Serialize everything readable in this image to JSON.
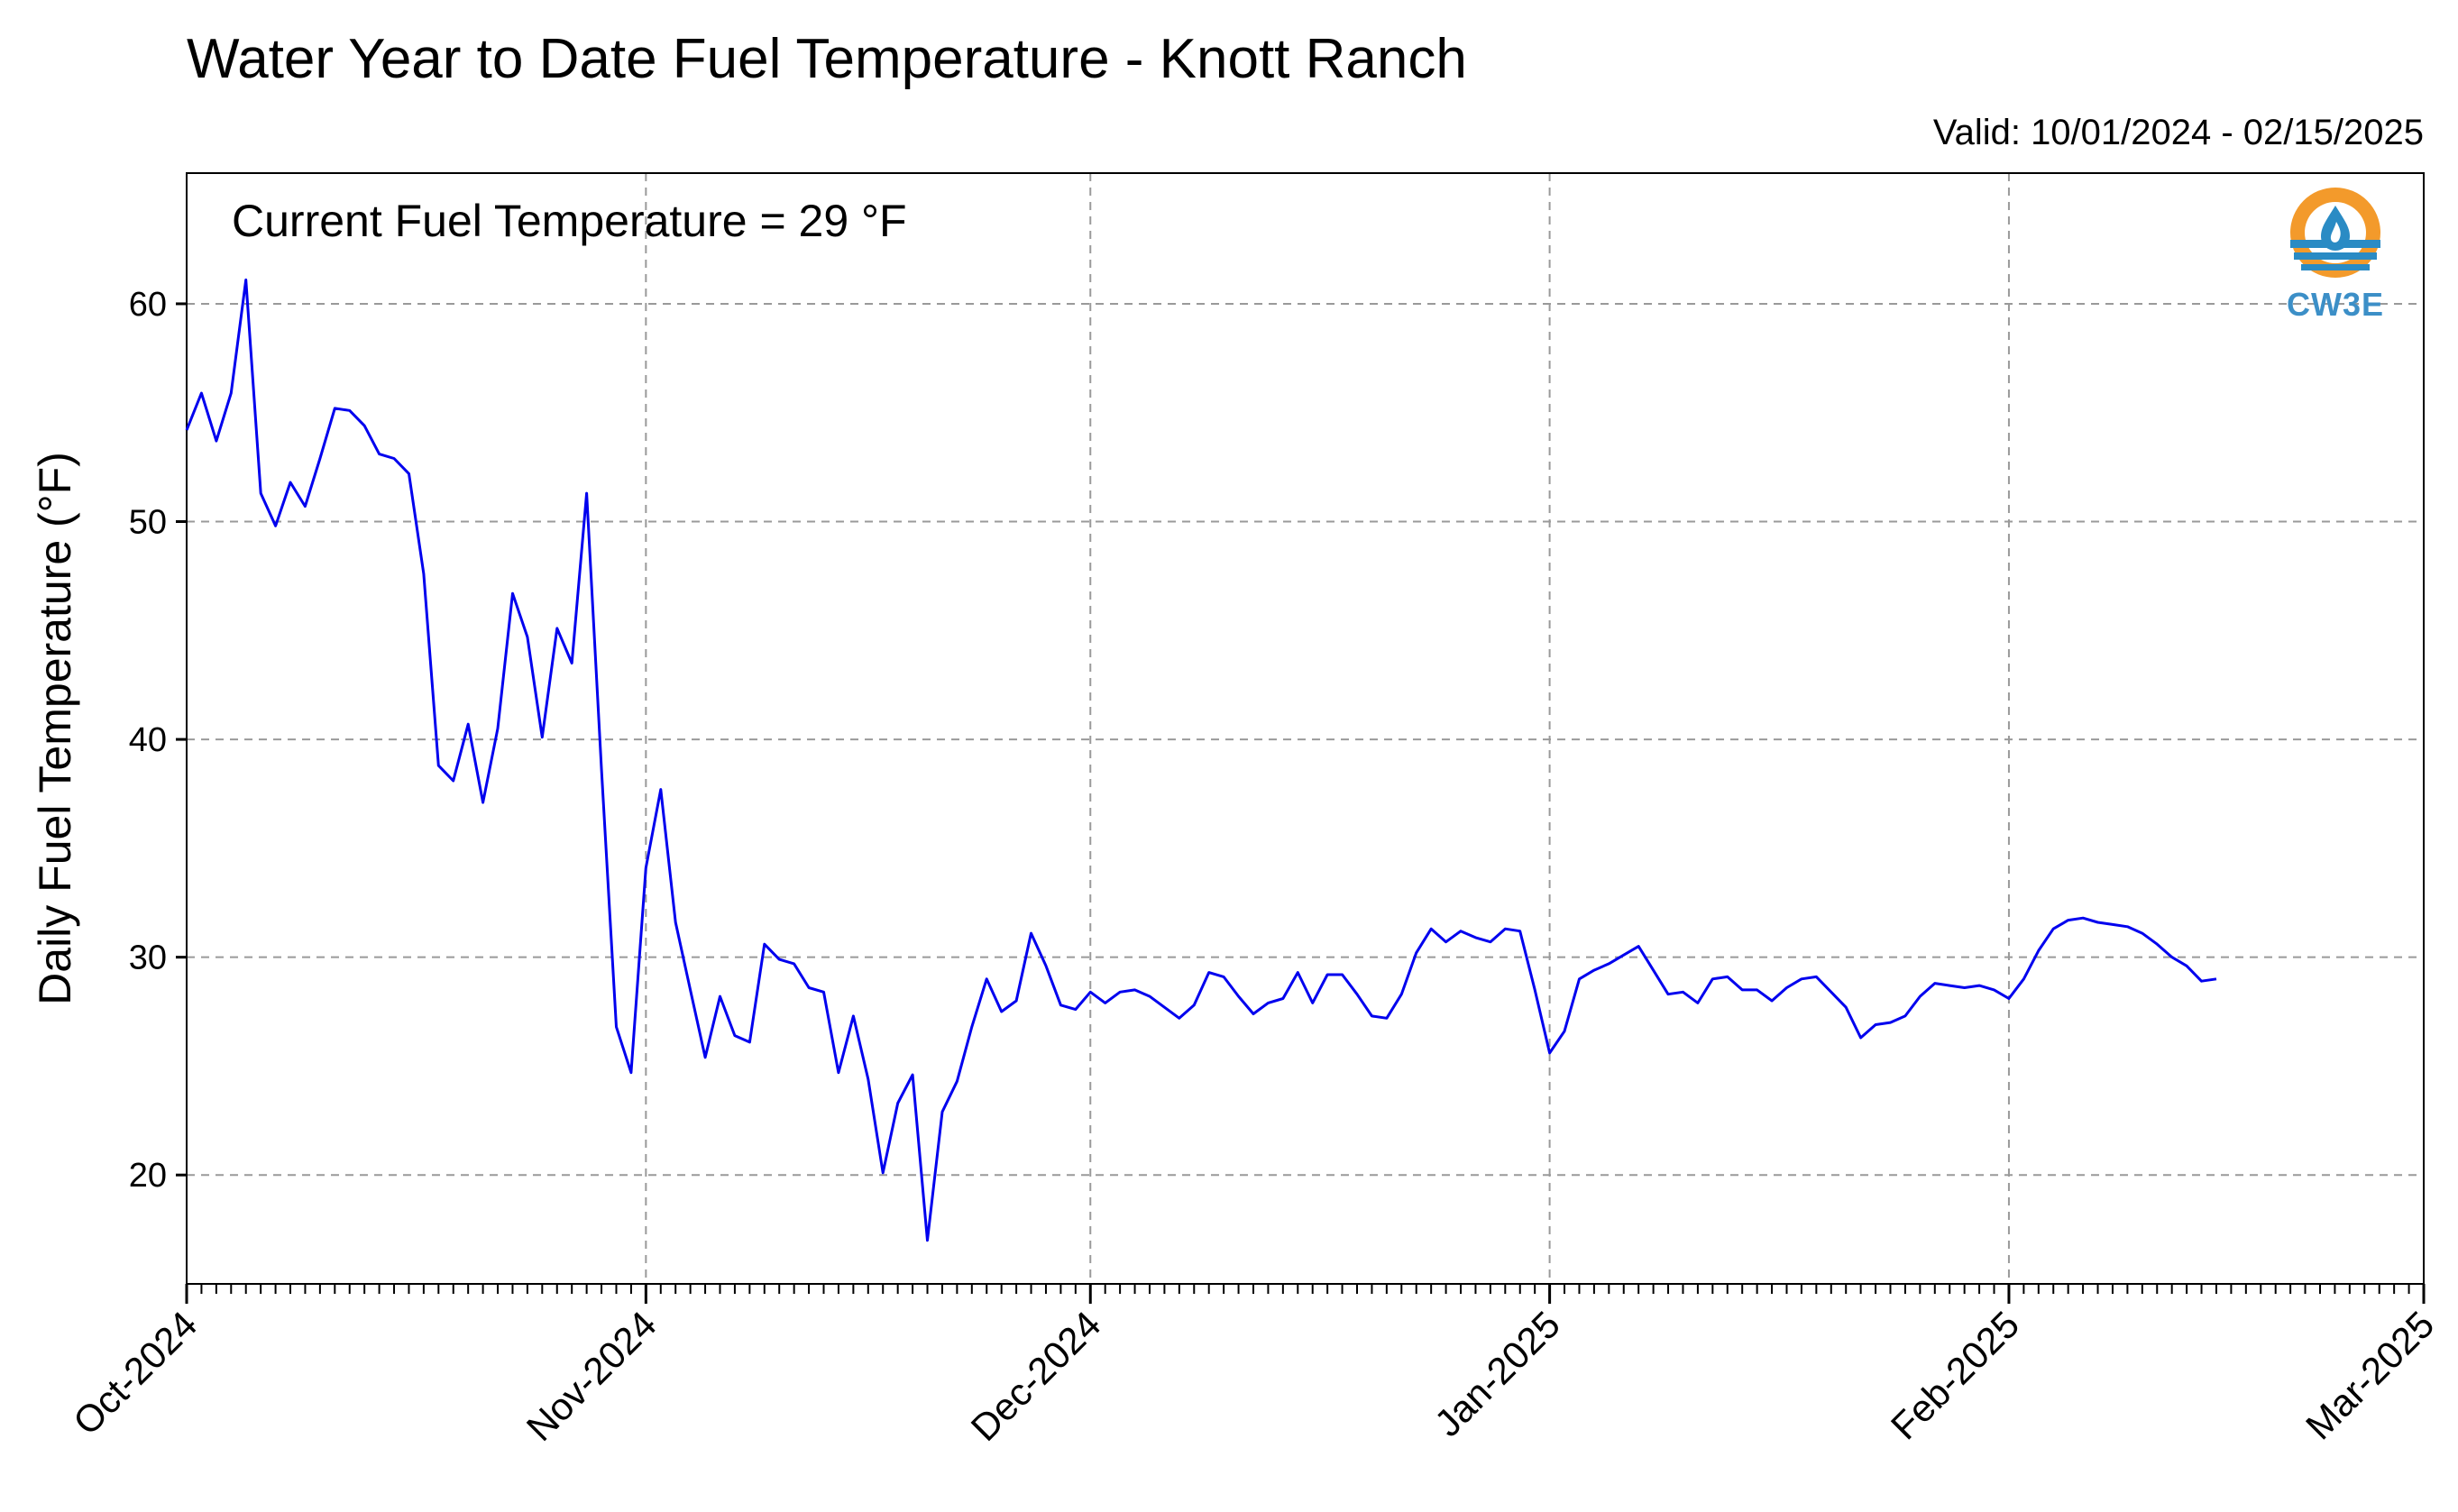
{
  "chart_data": {
    "type": "line",
    "title": "Water Year to Date Fuel Temperature - Knott Ranch",
    "subtitle": "Valid: 10/01/2024 - 02/15/2025",
    "annotation": "Current Fuel Temperature = 29 °F",
    "ylabel": "Daily Fuel Temperature (°F)",
    "xlabel": "",
    "ylim": [
      15,
      66
    ],
    "xlim": [
      "2024-10-01",
      "2025-03-01"
    ],
    "yticks": [
      20,
      30,
      40,
      50,
      60
    ],
    "xticks": [
      {
        "date": "2024-10-01",
        "label": "Oct-2024"
      },
      {
        "date": "2024-11-01",
        "label": "Nov-2024"
      },
      {
        "date": "2024-12-01",
        "label": "Dec-2024"
      },
      {
        "date": "2025-01-01",
        "label": "Jan-2025"
      },
      {
        "date": "2025-02-01",
        "label": "Feb-2025"
      },
      {
        "date": "2025-03-01",
        "label": "Mar-2025"
      }
    ],
    "grid": true,
    "line_color": "#0000ee",
    "series": [
      {
        "x": [
          "2024-10-01",
          "2024-10-02",
          "2024-10-03",
          "2024-10-04",
          "2024-10-05",
          "2024-10-06",
          "2024-10-07",
          "2024-10-08",
          "2024-10-09",
          "2024-10-10",
          "2024-10-11",
          "2024-10-12",
          "2024-10-13",
          "2024-10-14",
          "2024-10-15",
          "2024-10-16",
          "2024-10-17",
          "2024-10-18",
          "2024-10-19",
          "2024-10-20",
          "2024-10-21",
          "2024-10-22",
          "2024-10-23",
          "2024-10-24",
          "2024-10-25",
          "2024-10-26",
          "2024-10-27",
          "2024-10-28",
          "2024-10-29",
          "2024-10-30",
          "2024-10-31",
          "2024-11-01",
          "2024-11-02",
          "2024-11-03",
          "2024-11-04",
          "2024-11-05",
          "2024-11-06",
          "2024-11-07",
          "2024-11-08",
          "2024-11-09",
          "2024-11-10",
          "2024-11-11",
          "2024-11-12",
          "2024-11-13",
          "2024-11-14",
          "2024-11-15",
          "2024-11-16",
          "2024-11-17",
          "2024-11-18",
          "2024-11-19",
          "2024-11-20",
          "2024-11-21",
          "2024-11-22",
          "2024-11-23",
          "2024-11-24",
          "2024-11-25",
          "2024-11-26",
          "2024-11-27",
          "2024-11-28",
          "2024-11-29",
          "2024-11-30",
          "2024-12-01",
          "2024-12-02",
          "2024-12-03",
          "2024-12-04",
          "2024-12-05",
          "2024-12-06",
          "2024-12-07",
          "2024-12-08",
          "2024-12-09",
          "2024-12-10",
          "2024-12-11",
          "2024-12-12",
          "2024-12-13",
          "2024-12-14",
          "2024-12-15",
          "2024-12-16",
          "2024-12-17",
          "2024-12-18",
          "2024-12-19",
          "2024-12-20",
          "2024-12-21",
          "2024-12-22",
          "2024-12-23",
          "2024-12-24",
          "2024-12-25",
          "2024-12-26",
          "2024-12-27",
          "2024-12-28",
          "2024-12-29",
          "2024-12-30",
          "2024-12-31",
          "2025-01-01",
          "2025-01-02",
          "2025-01-03",
          "2025-01-04",
          "2025-01-05",
          "2025-01-06",
          "2025-01-07",
          "2025-01-08",
          "2025-01-09",
          "2025-01-10",
          "2025-01-11",
          "2025-01-12",
          "2025-01-13",
          "2025-01-14",
          "2025-01-15",
          "2025-01-16",
          "2025-01-17",
          "2025-01-18",
          "2025-01-19",
          "2025-01-20",
          "2025-01-21",
          "2025-01-22",
          "2025-01-23",
          "2025-01-24",
          "2025-01-25",
          "2025-01-26",
          "2025-01-27",
          "2025-01-28",
          "2025-01-29",
          "2025-01-30",
          "2025-01-31",
          "2025-02-01",
          "2025-02-02",
          "2025-02-03",
          "2025-02-04",
          "2025-02-05",
          "2025-02-06",
          "2025-02-07",
          "2025-02-08",
          "2025-02-09",
          "2025-02-10",
          "2025-02-11",
          "2025-02-12",
          "2025-02-13",
          "2025-02-14",
          "2025-02-15"
        ],
        "y": [
          54.2,
          55.9,
          53.7,
          55.9,
          61.1,
          51.3,
          49.8,
          51.8,
          50.7,
          52.9,
          55.2,
          55.1,
          54.4,
          53.1,
          52.9,
          52.2,
          47.6,
          38.8,
          38.1,
          40.7,
          37.1,
          40.5,
          46.7,
          44.7,
          40.1,
          45.1,
          43.5,
          51.3,
          38.6,
          26.8,
          24.7,
          34.1,
          37.7,
          31.6,
          28.5,
          25.4,
          28.2,
          26.4,
          26.1,
          30.6,
          29.9,
          29.7,
          28.6,
          28.4,
          24.7,
          27.3,
          24.4,
          20.1,
          23.3,
          24.6,
          17.0,
          22.9,
          24.3,
          26.8,
          29.0,
          27.5,
          28.0,
          31.1,
          29.6,
          27.8,
          27.6,
          28.4,
          27.9,
          28.4,
          28.5,
          28.2,
          27.7,
          27.2,
          27.8,
          29.3,
          29.1,
          28.2,
          27.4,
          27.9,
          28.1,
          29.3,
          27.9,
          29.2,
          29.2,
          28.3,
          27.3,
          27.2,
          28.3,
          30.2,
          31.3,
          30.7,
          31.2,
          30.9,
          30.7,
          31.3,
          31.2,
          28.5,
          25.6,
          26.6,
          29.0,
          29.4,
          29.7,
          30.1,
          30.5,
          29.4,
          28.3,
          28.4,
          27.9,
          29.0,
          29.1,
          28.5,
          28.5,
          28.0,
          28.6,
          29.0,
          29.1,
          28.4,
          27.7,
          26.3,
          26.9,
          27.0,
          27.3,
          28.2,
          28.8,
          28.7,
          28.6,
          28.7,
          28.5,
          28.1,
          29.0,
          30.3,
          31.3,
          31.7,
          31.8,
          31.6,
          31.5,
          31.4,
          31.1,
          30.6,
          30.0,
          29.6,
          28.9,
          29.0
        ]
      }
    ]
  },
  "logo": {
    "label": "CW3E",
    "ring_color": "#f39a2b",
    "wave_color": "#2a8bc4",
    "text_color": "#3c8fc7"
  }
}
